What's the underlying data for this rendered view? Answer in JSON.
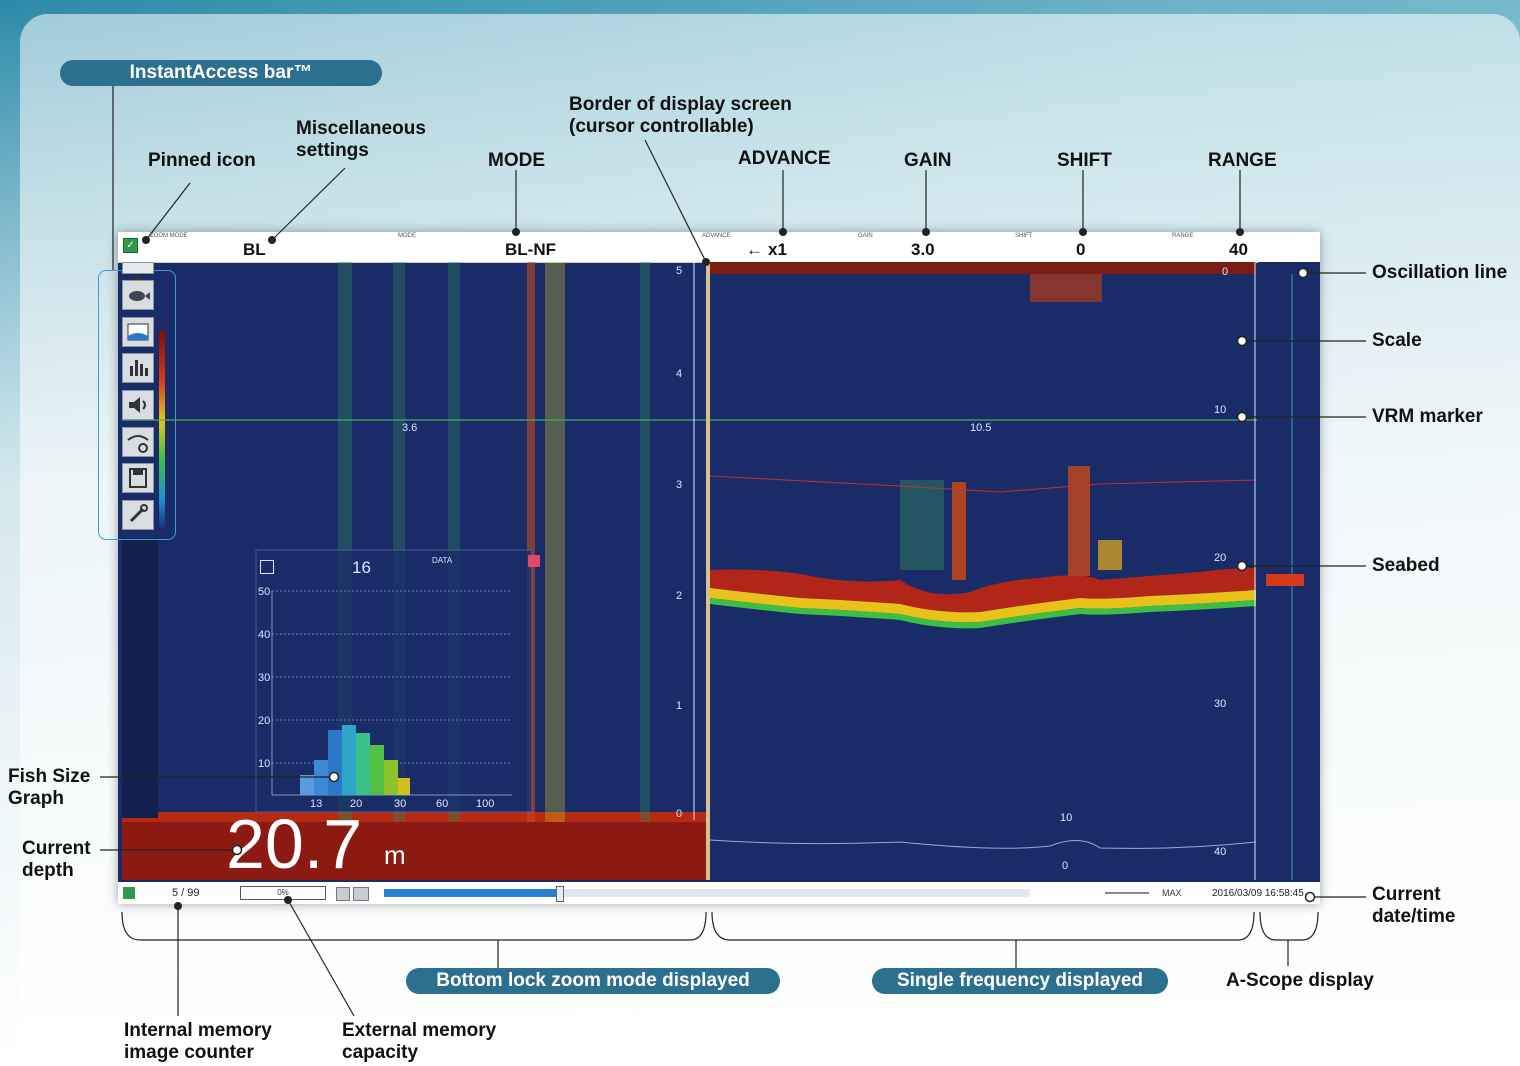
{
  "header": {
    "instant_access_bar": "InstantAccess bar™",
    "zoom_mode_small": "ZOOM MODE",
    "zoom_mode_value": "BL",
    "mode_small": "MODE",
    "mode_value": "BL-NF",
    "advance_small": "ADVANCE",
    "advance_value": "x1",
    "gain_small": "GAIN",
    "gain_value": "3.0",
    "shift_small": "SHIFT",
    "shift_value": "0",
    "range_small": "RANGE",
    "range_value": "40"
  },
  "callouts": {
    "pinned_icon": "Pinned icon",
    "misc_settings": "Miscellaneous settings",
    "mode": "MODE",
    "border_display": "Border of display screen (cursor controllable)",
    "advance": "ADVANCE",
    "gain": "GAIN",
    "shift": "SHIFT",
    "range": "RANGE",
    "oscillation_line": "Oscillation line",
    "scale": "Scale",
    "vrm_marker": "VRM marker",
    "seabed": "Seabed",
    "fish_size_graph": "Fish Size Graph",
    "current_depth": "Current depth",
    "current_datetime": "Current date/time",
    "bottom_lock": "Bottom lock zoom mode displayed",
    "single_freq": "Single frequency displayed",
    "a_scope": "A-Scope display",
    "internal_memory": "Internal memory image counter",
    "external_memory": "External memory capacity"
  },
  "screen": {
    "depth_value": "20.7",
    "depth_unit": "m",
    "image_counter": "5 / 99",
    "external_capacity": "0%",
    "datetime": "2016/03/09 16:58:45",
    "max_label": "MAX",
    "vrm_left": "3.6",
    "vrm_right": "10.5",
    "left_scale": [
      "5",
      "4",
      "3",
      "2",
      "1",
      "0"
    ],
    "right_scale": [
      "0",
      "10",
      "20",
      "30",
      "40"
    ],
    "mini_scale": [
      "10",
      "0"
    ],
    "fish_graph": {
      "header_value": "16",
      "data_label": "DATA",
      "y_ticks": [
        "50",
        "40",
        "30",
        "20",
        "10"
      ],
      "x_ticks": [
        "13",
        "20",
        "30",
        "60",
        "100"
      ]
    }
  },
  "colors": {
    "pill": "#2d6f8f",
    "screen": "#1a2c68",
    "header_bg": "#ffffff"
  }
}
